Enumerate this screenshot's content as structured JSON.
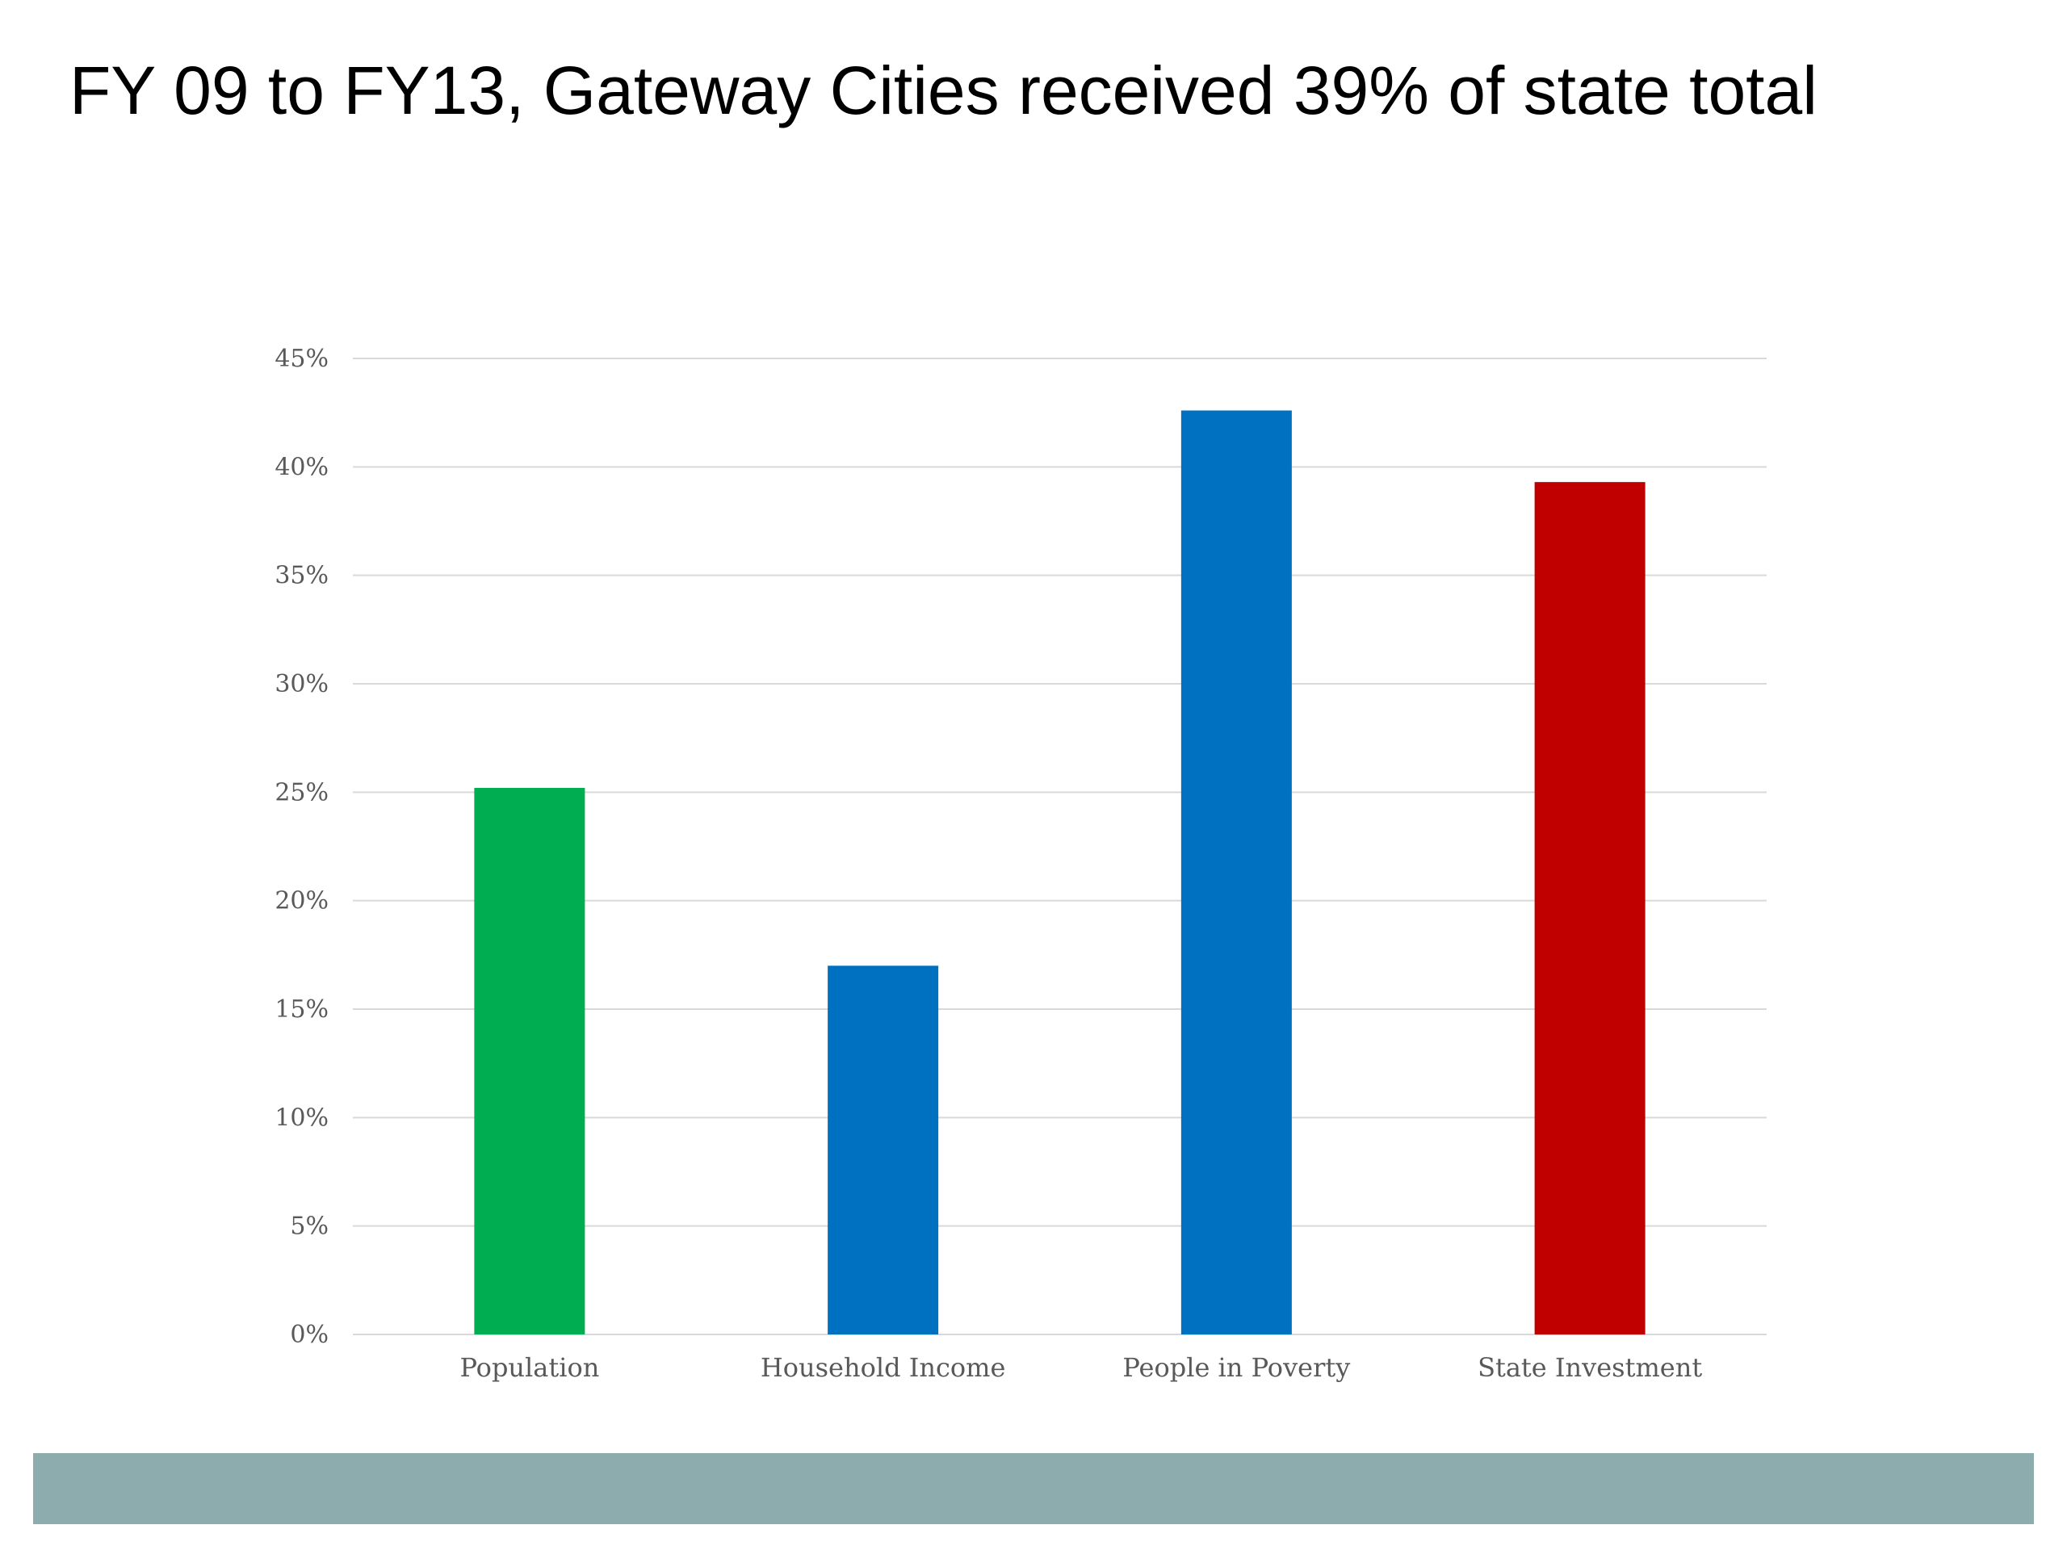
{
  "slide": {
    "title": "FY 09 to FY13, Gateway Cities received 39% of state total",
    "footer_color": "#8dacad"
  },
  "chart_data": {
    "type": "bar",
    "categories": [
      "Population",
      "Household Income",
      "People in Poverty",
      "State Investment"
    ],
    "values": [
      25.2,
      17.0,
      42.6,
      39.3
    ],
    "colors": [
      "#00ad50",
      "#0070c0",
      "#0070c0",
      "#c00000"
    ],
    "ylim": [
      0,
      45
    ],
    "yticks": [
      0,
      5,
      10,
      15,
      20,
      25,
      30,
      35,
      40,
      45
    ],
    "ytick_labels": [
      "0%",
      "5%",
      "10%",
      "15%",
      "20%",
      "25%",
      "30%",
      "35%",
      "40%",
      "45%"
    ],
    "grid": true,
    "legend": "none",
    "title": "",
    "xlabel": "",
    "ylabel": ""
  }
}
